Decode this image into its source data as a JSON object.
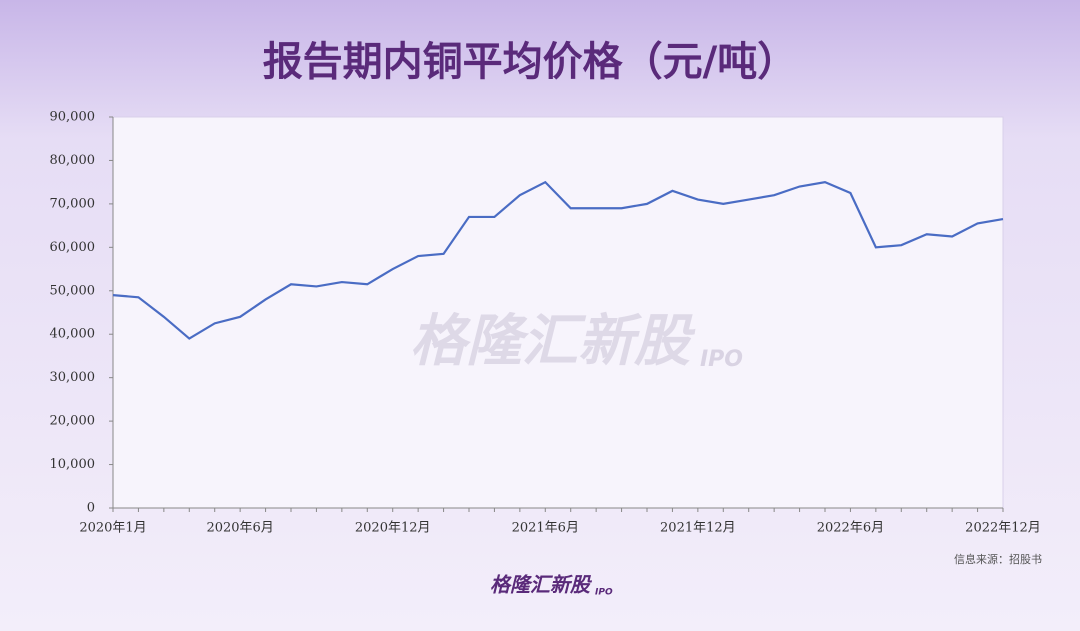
{
  "chart_data": {
    "type": "line",
    "title": "报告期内铜平均价格（元/吨）",
    "categories": [
      "2020年1月",
      null,
      null,
      null,
      null,
      "2020年6月",
      null,
      null,
      null,
      null,
      null,
      "2020年12月",
      null,
      null,
      null,
      null,
      null,
      "2021年6月",
      null,
      null,
      null,
      null,
      null,
      "2021年12月",
      null,
      null,
      null,
      null,
      null,
      "2022年6月",
      null,
      null,
      null,
      null,
      null,
      "2022年12月"
    ],
    "series": [
      {
        "color": "#4a6cc4",
        "values": [
          49000,
          48500,
          44000,
          39000,
          42500,
          44000,
          48000,
          51500,
          51000,
          52000,
          51500,
          55000,
          58000,
          58500,
          67000,
          67000,
          72000,
          75000,
          69000,
          69000,
          69000,
          70000,
          73000,
          71000,
          70000,
          71000,
          72000,
          74000,
          75000,
          72500,
          60000,
          60500,
          63000,
          62500,
          65500,
          66500
        ]
      }
    ],
    "ylim": [
      0,
      90000
    ],
    "yticks": [
      0,
      {
        "value": 10000,
        "label": "10,000"
      },
      {
        "value": 20000,
        "label": "20,000"
      },
      {
        "value": 30000,
        "label": "30,000"
      },
      {
        "value": 40000,
        "label": "40,000"
      },
      {
        "value": 50000,
        "label": "50,000"
      },
      {
        "value": 60000,
        "label": "60,000"
      },
      {
        "value": 70000,
        "label": "70,000"
      },
      {
        "value": 80000,
        "label": "80,000"
      },
      {
        "value": 90000,
        "label": "90,000"
      }
    ],
    "source": "信息来源：招股书",
    "watermark": "格隆汇新股",
    "watermark_tag": "IPO"
  }
}
